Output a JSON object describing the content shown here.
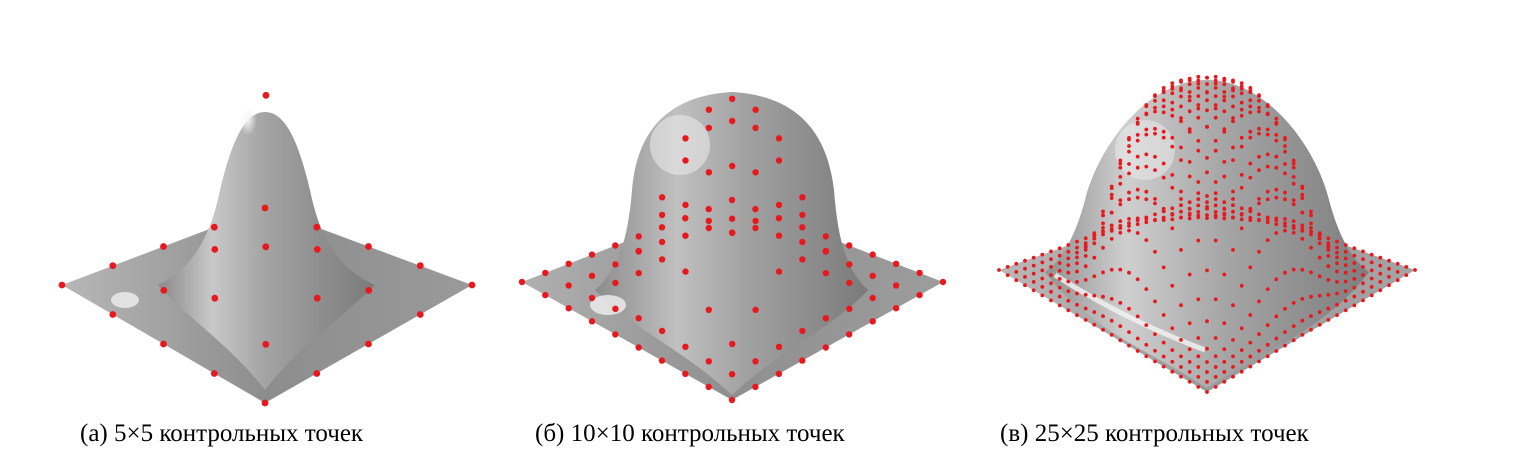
{
  "figure": {
    "panels": [
      {
        "id": "a",
        "caption": "(a) 5×5 контрольных точек",
        "grid_size": 5,
        "surface": "bell"
      },
      {
        "id": "b",
        "caption": "(б) 10×10 контрольных точек",
        "grid_size": 10,
        "surface": "dome"
      },
      {
        "id": "c",
        "caption": "(в) 25×25 контрольных точек",
        "grid_size": 25,
        "surface": "wide-dome"
      }
    ],
    "colors": {
      "control_point": "#e8191e",
      "surface_dark": "#6f6f6f",
      "surface_mid": "#a9a9a9",
      "surface_light": "#f2f2f2"
    }
  }
}
